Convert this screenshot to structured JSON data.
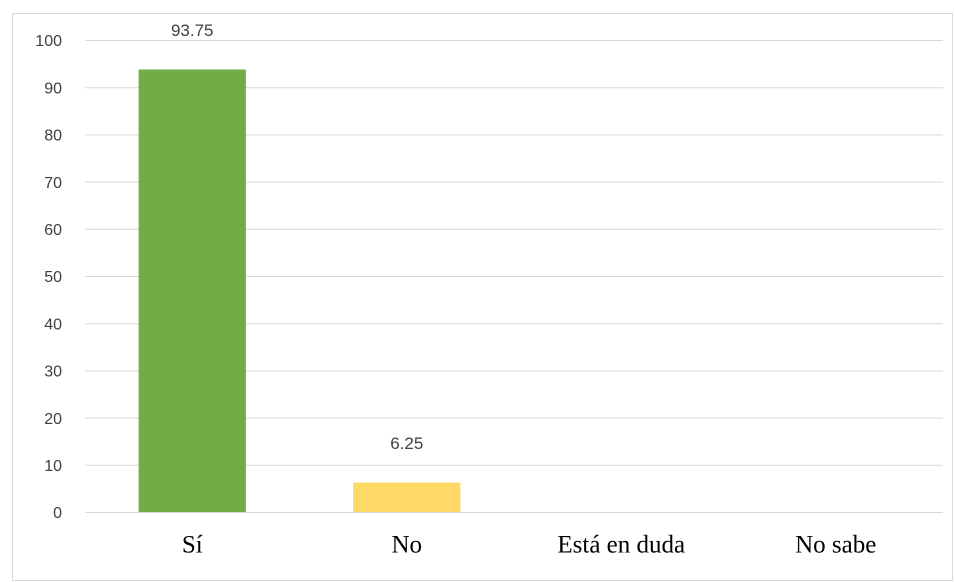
{
  "chart_data": {
    "type": "bar",
    "categories": [
      "Sí",
      "No",
      "Está en duda",
      "No sabe"
    ],
    "values": [
      93.75,
      6.25,
      null,
      null
    ],
    "colors": [
      "#70ad47",
      "#ffd966",
      "#70ad47",
      "#ffd966"
    ],
    "ylim": [
      0,
      100
    ],
    "yticks": [
      0,
      10,
      20,
      30,
      40,
      50,
      60,
      70,
      80,
      90,
      100
    ],
    "grid": true
  }
}
